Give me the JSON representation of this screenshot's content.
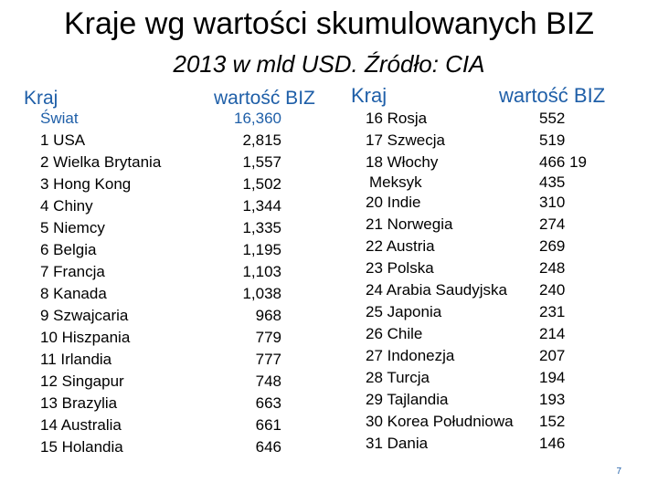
{
  "title": "Kraje wg wartości skumulowanych BIZ",
  "subtitle": "2013 w mld USD. Źródło: CIA",
  "left": {
    "header_country": "Kraj",
    "header_value": "wartość BIZ",
    "rows": [
      {
        "label": "Świat",
        "value": "16,360"
      },
      {
        "label": "1  USA",
        "value": "2,815"
      },
      {
        "label": "2  Wielka Brytania",
        "value": "1,557"
      },
      {
        "label": "3  Hong Kong",
        "value": "1,502"
      },
      {
        "label": "4  Chiny",
        "value": "1,344"
      },
      {
        "label": "5  Niemcy",
        "value": "1,335"
      },
      {
        "label": "6  Belgia",
        "value": "1,195"
      },
      {
        "label": "7  Francja",
        "value": "1,103"
      },
      {
        "label": "8  Kanada",
        "value": "1,038"
      },
      {
        "label": "9  Szwajcaria",
        "value": "968"
      },
      {
        "label": "10  Hiszpania",
        "value": "779"
      },
      {
        "label": "11  Irlandia",
        "value": "777"
      },
      {
        "label": "12  Singapur",
        "value": "748"
      },
      {
        "label": "13  Brazylia",
        "value": "663"
      },
      {
        "label": "14  Australia",
        "value": "661"
      },
      {
        "label": "15  Holandia",
        "value": "646"
      }
    ]
  },
  "right": {
    "header_country": "Kraj",
    "header_value": "wartość BIZ",
    "rows": [
      {
        "label": "16  Rosja",
        "value": "552"
      },
      {
        "label": "17  Szwecja",
        "value": "519"
      },
      {
        "label": "18  Włochy",
        "value": "466 19"
      },
      {
        "label": "Meksyk",
        "value": "435"
      },
      {
        "label": "20  Indie",
        "value": "310"
      },
      {
        "label": "21  Norwegia",
        "value": "274"
      },
      {
        "label": "22  Austria",
        "value": "269"
      },
      {
        "label": "23  Polska",
        "value": "248"
      },
      {
        "label": "24  Arabia Saudyjska",
        "value": "240"
      },
      {
        "label": "25  Japonia",
        "value": "231"
      },
      {
        "label": "26  Chile",
        "value": "214"
      },
      {
        "label": "27  Indonezja",
        "value": "207"
      },
      {
        "label": "28  Turcja",
        "value": "194"
      },
      {
        "label": "29  Tajlandia",
        "value": "193"
      },
      {
        "label": "30  Korea Południowa",
        "value": "152"
      },
      {
        "label": "31  Dania",
        "value": "146"
      }
    ]
  },
  "page_number": "7",
  "colors": {
    "accent": "#1f5fa8",
    "text": "#000000"
  }
}
